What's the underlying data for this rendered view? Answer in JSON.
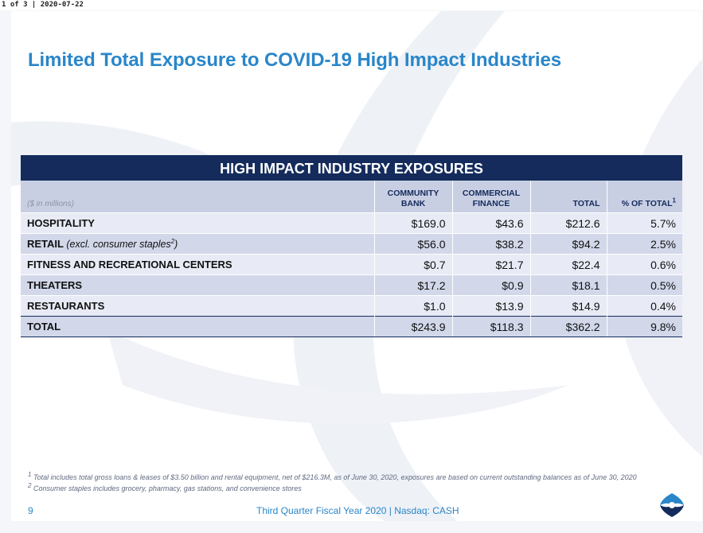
{
  "viewer_header": "1 of 3 | 2020-07-22",
  "title": "Limited Total Exposure to COVID-19 High Impact Industries",
  "table": {
    "heading": "HIGH IMPACT INDUSTRY EXPOSURES",
    "unit_label": "($ in millions)",
    "columns": [
      "COMMUNITY BANK",
      "COMMERCIAL FINANCE",
      "TOTAL",
      "% OF TOTAL"
    ],
    "columns_line1": [
      "COMMUNITY",
      "COMMERCIAL",
      "",
      ""
    ],
    "columns_line2": [
      "BANK",
      "FINANCE",
      "TOTAL",
      "% OF TOTAL"
    ],
    "col4_footnote_mark": "1",
    "rows": [
      {
        "label": "HOSPITALITY",
        "note": "",
        "values": [
          "$169.0",
          "$43.6",
          "$212.6",
          "5.7%"
        ]
      },
      {
        "label": "RETAIL",
        "note": "(excl. consumer staples",
        "note_mark": "2",
        "note_close": ")",
        "values": [
          "$56.0",
          "$38.2",
          "$94.2",
          "2.5%"
        ]
      },
      {
        "label": "FITNESS AND RECREATIONAL CENTERS",
        "note": "",
        "values": [
          "$0.7",
          "$21.7",
          "$22.4",
          "0.6%"
        ]
      },
      {
        "label": "THEATERS",
        "note": "",
        "values": [
          "$17.2",
          "$0.9",
          "$18.1",
          "0.5%"
        ]
      },
      {
        "label": "RESTAURANTS",
        "note": "",
        "values": [
          "$1.0",
          "$13.9",
          "$14.9",
          "0.4%"
        ]
      }
    ],
    "total": {
      "label": "TOTAL",
      "values": [
        "$243.9",
        "$118.3",
        "$362.2",
        "9.8%"
      ]
    }
  },
  "footnotes": [
    {
      "mark": "1",
      "text": "Total includes total gross loans & leases of $3.50 billion and rental equipment, net of $216.3M, as of June 30, 2020, exposures are based on current outstanding balances as of June 30, 2020"
    },
    {
      "mark": "2",
      "text": "Consumer staples includes grocery, pharmacy, gas stations, and convenience stores"
    }
  ],
  "page_number": "9",
  "footer_text": "Third Quarter Fiscal Year 2020 | Nasdaq: CASH",
  "colors": {
    "title_blue": "#2a86c9",
    "navy": "#142b5c",
    "row_light": "#e8ebf5",
    "row_dark": "#d2d8ea"
  },
  "logo_icon": "company-logo-icon"
}
